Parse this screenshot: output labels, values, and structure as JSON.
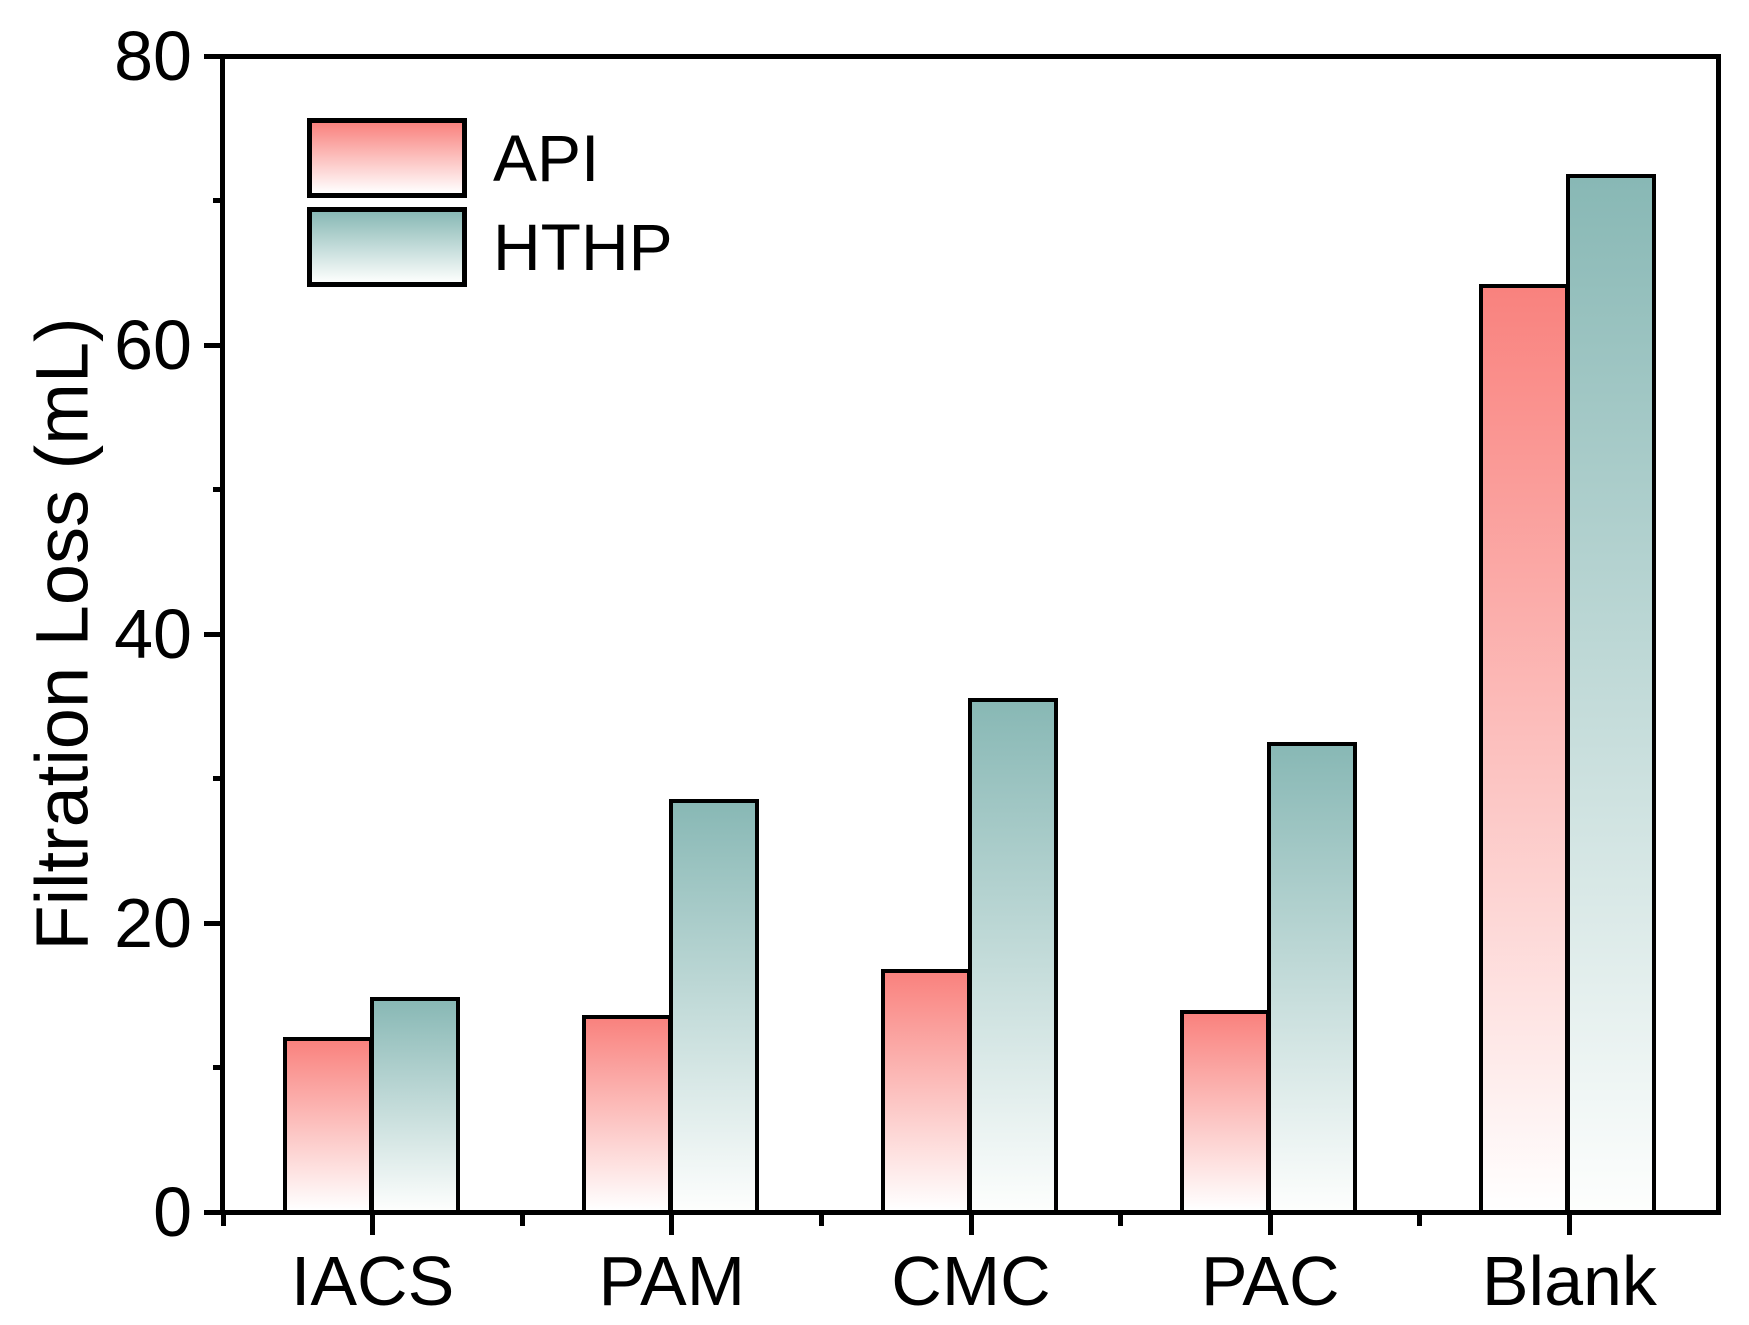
{
  "chart_data": {
    "type": "bar",
    "title": "",
    "categories": [
      "IACS",
      "PAM",
      "CMC",
      "PAC",
      "Blank"
    ],
    "series": [
      {
        "name": "API",
        "values": [
          12.1,
          13.6,
          16.8,
          14.0,
          64.2
        ],
        "color_top": "#f9827e",
        "color_bottom": "#ffffff"
      },
      {
        "name": "HTHP",
        "values": [
          14.9,
          28.6,
          35.6,
          32.5,
          71.8
        ],
        "color_top": "#88b8b5",
        "color_bottom": "#fdfefd"
      }
    ],
    "xlabel": "",
    "ylabel": "Filtration Loss (mL)",
    "ylim": [
      0,
      80
    ],
    "yticks": [
      0,
      20,
      40,
      60,
      80
    ],
    "ytick_labels": [
      "0",
      "20",
      "40",
      "60",
      "80"
    ],
    "yticks_minor": [
      10,
      30,
      50,
      70
    ],
    "grid": false,
    "legend_position": "top-left",
    "axis_color": "#000000",
    "bar_outline_color": "#000000",
    "background_color": "#ffffff"
  }
}
